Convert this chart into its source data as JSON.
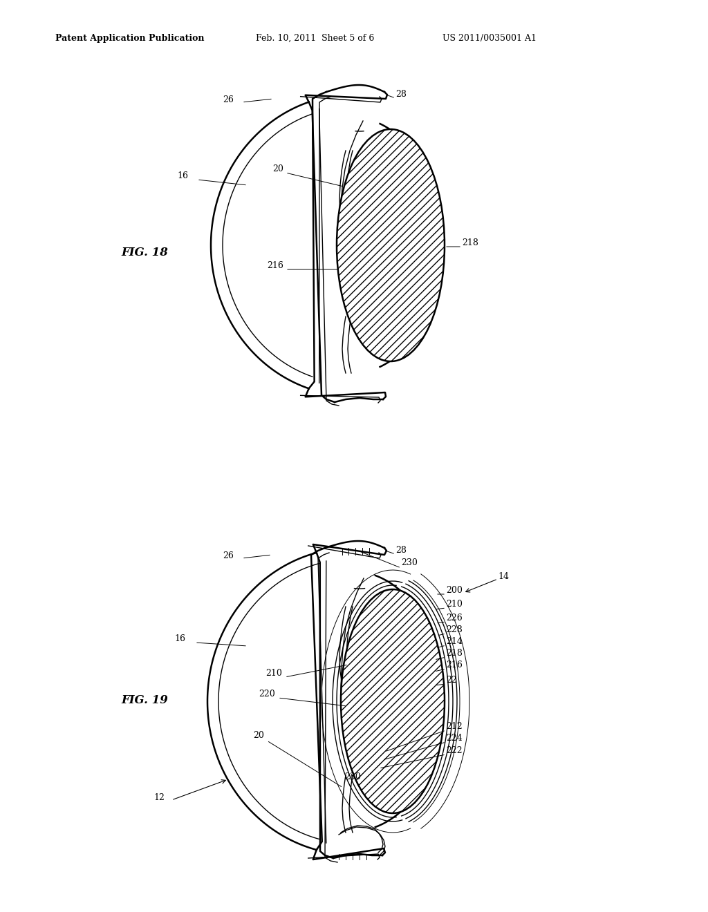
{
  "bg_color": "#ffffff",
  "line_color": "#000000",
  "header_text": "Patent Application Publication",
  "header_date": "Feb. 10, 2011  Sheet 5 of 6",
  "header_patent": "US 2011/0035001 A1",
  "fig18_label": "FIG. 18",
  "fig19_label": "FIG. 19",
  "label_fontsize": 9,
  "fig_label_fontsize": 12
}
